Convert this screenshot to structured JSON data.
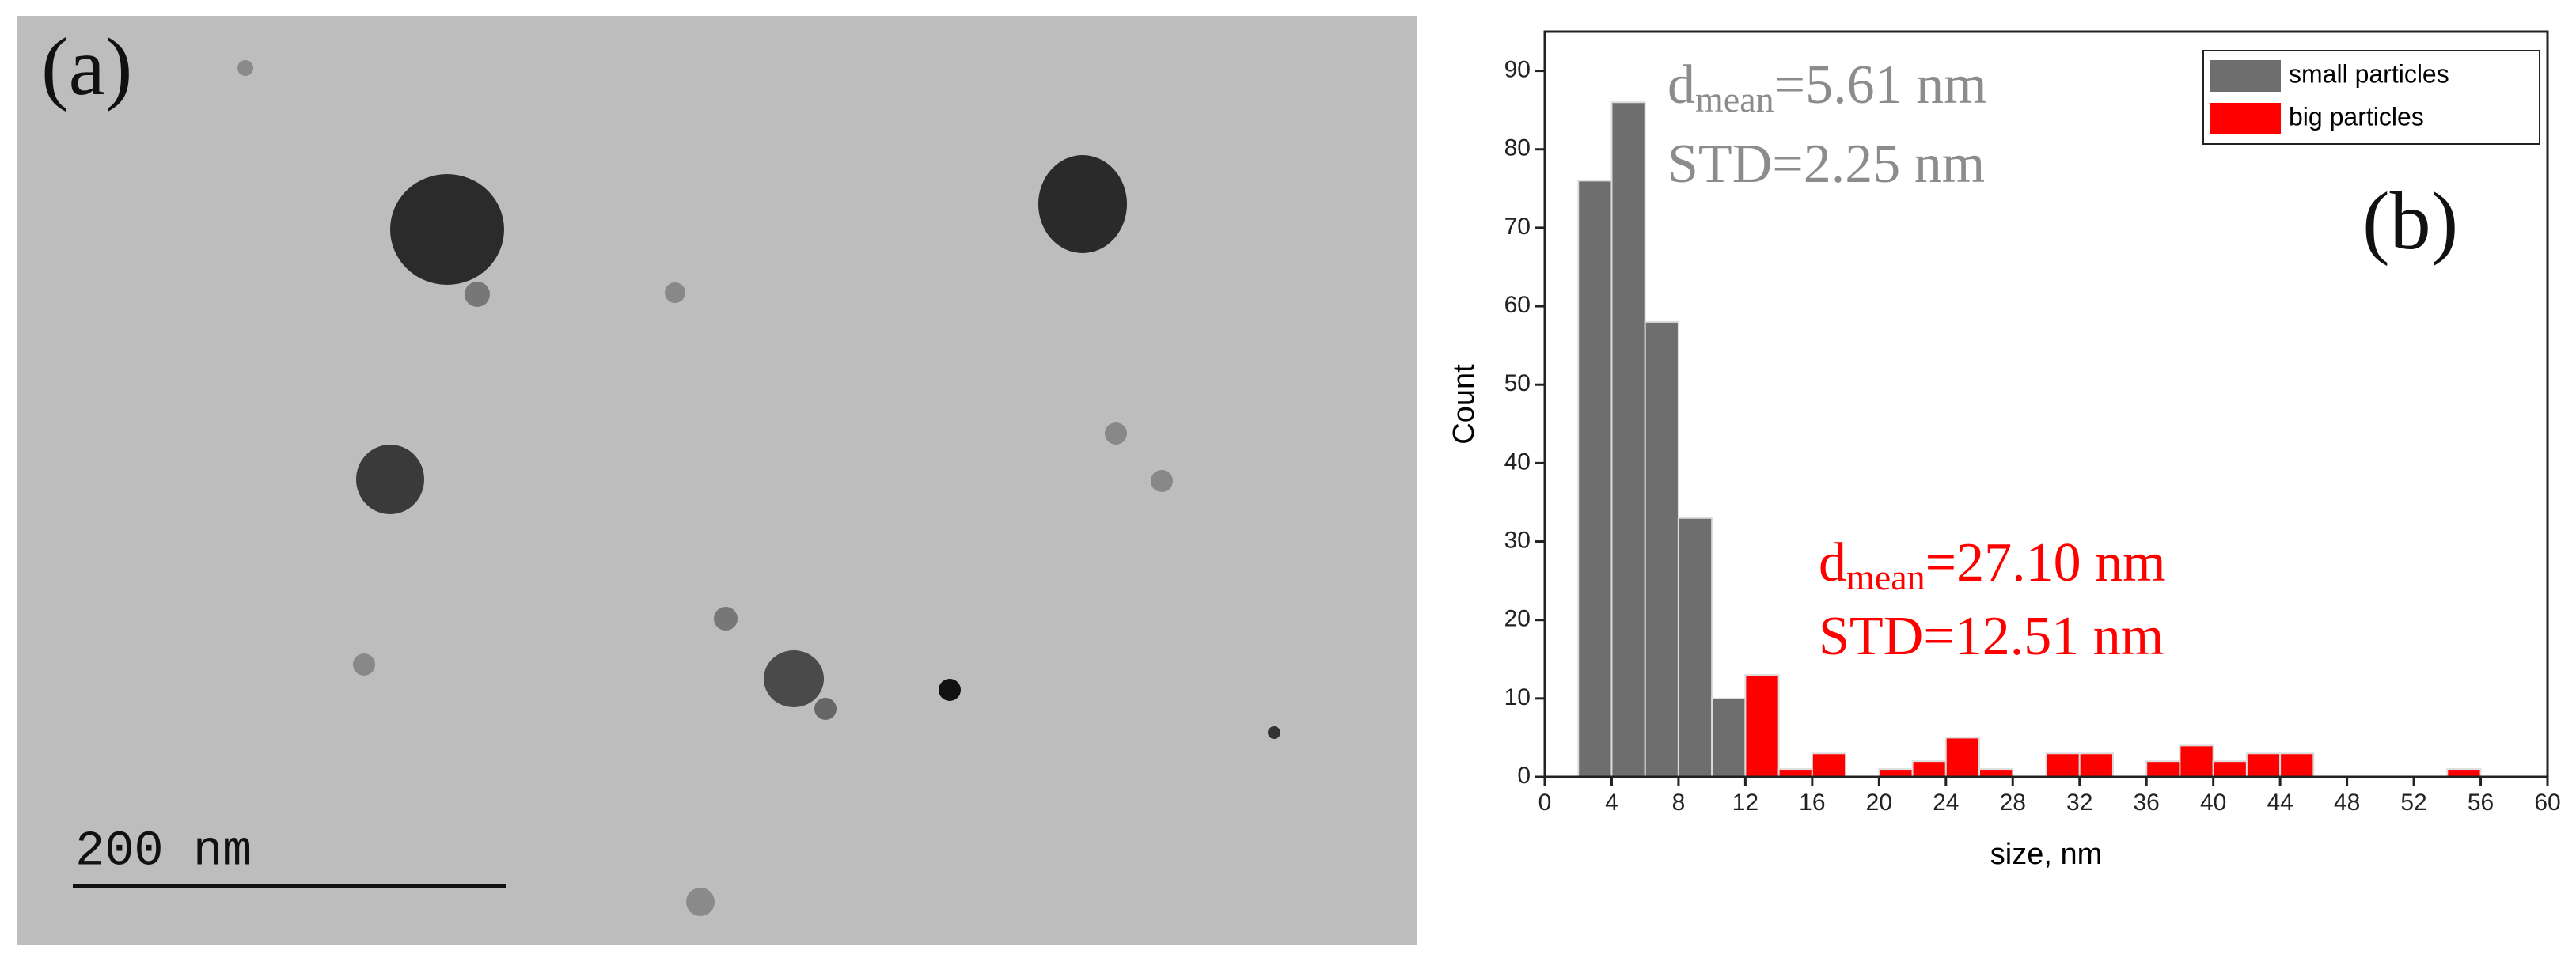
{
  "image_panel": {
    "label": "(a)",
    "scale_bar": "200 nm"
  },
  "chart_data": {
    "type": "histogram",
    "panel_label": "(b)",
    "x_label": "size, nm",
    "y_label": "Count",
    "xlim": [
      0,
      60
    ],
    "ylim": [
      0,
      95
    ],
    "xticks": [
      0,
      4,
      8,
      12,
      16,
      20,
      24,
      28,
      32,
      36,
      40,
      44,
      48,
      52,
      56,
      60
    ],
    "yticks": [
      0,
      10,
      20,
      30,
      40,
      50,
      60,
      70,
      80,
      90
    ],
    "legend": "top-right",
    "series": [
      {
        "name": "small particles",
        "color": "#6e6e6e",
        "bins": [
          2,
          4,
          6,
          8,
          10,
          12
        ],
        "values": [
          76,
          86,
          58,
          33,
          10
        ]
      },
      {
        "name": "big particles",
        "color": "#ff0000",
        "bins": [
          12,
          14,
          16,
          18,
          20,
          22,
          24,
          26,
          28,
          30,
          32,
          34,
          36,
          38,
          40,
          42,
          44,
          46,
          48,
          50,
          52,
          54,
          56
        ],
        "values": [
          13,
          1,
          3,
          0,
          1,
          2,
          5,
          1,
          0,
          3,
          3,
          0,
          2,
          4,
          2,
          3,
          3,
          0,
          0,
          0,
          0,
          1
        ]
      }
    ],
    "annotations": [
      {
        "symbol": "d",
        "subscript": "mean",
        "text": "=5.61 nm",
        "color": "#8c8c8c"
      },
      {
        "text": "STD=2.25 nm",
        "color": "#8c8c8c"
      },
      {
        "symbol": "d",
        "subscript": "mean",
        "text": "=27.10 nm",
        "color": "#ff0000"
      },
      {
        "text": "STD=12.51 nm",
        "color": "#ff0000"
      }
    ]
  }
}
